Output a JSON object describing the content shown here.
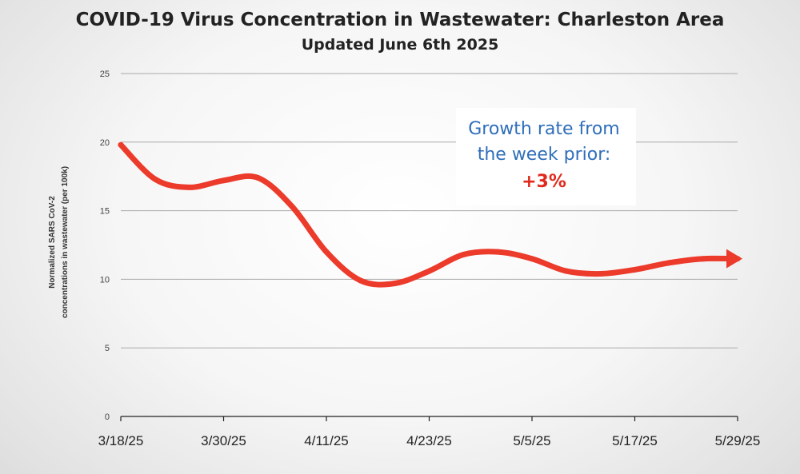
{
  "chart_data": {
    "type": "line",
    "title": "COVID-19 Virus Concentration in Wastewater: Charleston Area",
    "subtitle": "Updated June 6th 2025",
    "ylabel_line1": "Normalized SARS CoV-2",
    "ylabel_line2": "concentrations in wastewater (per 100k)",
    "xlabel": "",
    "ylim": [
      0,
      25
    ],
    "y_ticks": [
      0,
      5,
      10,
      15,
      20,
      25
    ],
    "x_ticks": [
      "3/18/25",
      "3/30/25",
      "4/11/25",
      "4/23/25",
      "5/5/25",
      "5/17/25",
      "5/29/25"
    ],
    "x_start": "3/18/25",
    "x_span_days": 72,
    "grid": true,
    "series": [
      {
        "name": "Normalized SARS CoV-2 concentration",
        "color": "#ec3a2b",
        "x_days": [
          0,
          4,
          8,
          12,
          16,
          20,
          24,
          28,
          32,
          36,
          40,
          44,
          48,
          52,
          56,
          60,
          64,
          68,
          72
        ],
        "values": [
          19.8,
          17.3,
          16.7,
          17.2,
          17.4,
          15.3,
          12.0,
          9.9,
          9.7,
          10.6,
          11.8,
          12.0,
          11.5,
          10.6,
          10.4,
          10.7,
          11.2,
          11.5,
          11.5
        ]
      }
    ],
    "annotation": {
      "line1": "Growth rate from",
      "line2": "the week prior:",
      "value": "+3%",
      "text_color": "#2f6eba",
      "value_color": "#e02a1e"
    }
  }
}
